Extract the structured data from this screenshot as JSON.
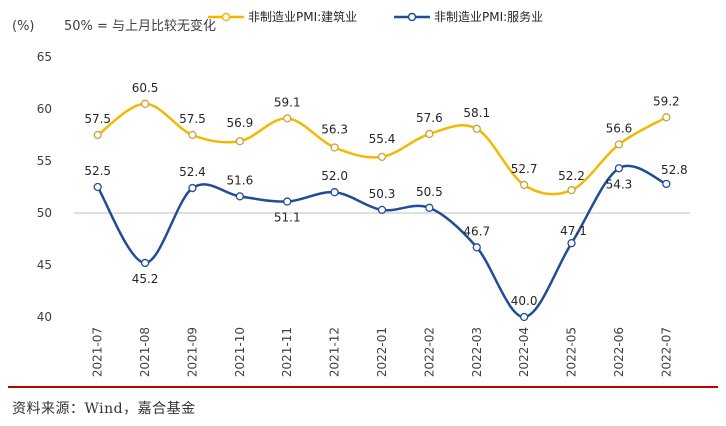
{
  "chart_data": {
    "type": "line",
    "unit_note": "(%)",
    "annotation": "50% = 与上月比较无变化",
    "categories": [
      "2021-07",
      "2021-08",
      "2021-09",
      "2021-10",
      "2021-11",
      "2021-12",
      "2022-01",
      "2022-02",
      "2022-03",
      "2022-04",
      "2022-05",
      "2022-06",
      "2022-07"
    ],
    "series": [
      {
        "name": "非制造业PMI:建筑业",
        "color": "#F5B800",
        "values": [
          57.5,
          60.5,
          57.5,
          56.9,
          59.1,
          56.3,
          55.4,
          57.6,
          58.1,
          52.7,
          52.2,
          56.6,
          59.2
        ]
      },
      {
        "name": "非制造业PMI:服务业",
        "color": "#1F4E96",
        "values": [
          52.5,
          45.2,
          52.4,
          51.6,
          51.1,
          52.0,
          50.3,
          50.5,
          46.7,
          40.0,
          47.1,
          54.3,
          52.8
        ]
      }
    ],
    "ylim": [
      40,
      65
    ],
    "yticks": [
      40,
      45,
      50,
      55,
      60,
      65
    ],
    "grid": false,
    "legend": "top"
  },
  "source_text": "资料来源：Wind，嘉合基金",
  "colors": {
    "axis": "#BFBFBF",
    "rule": "#C00000",
    "label": "#404040"
  }
}
